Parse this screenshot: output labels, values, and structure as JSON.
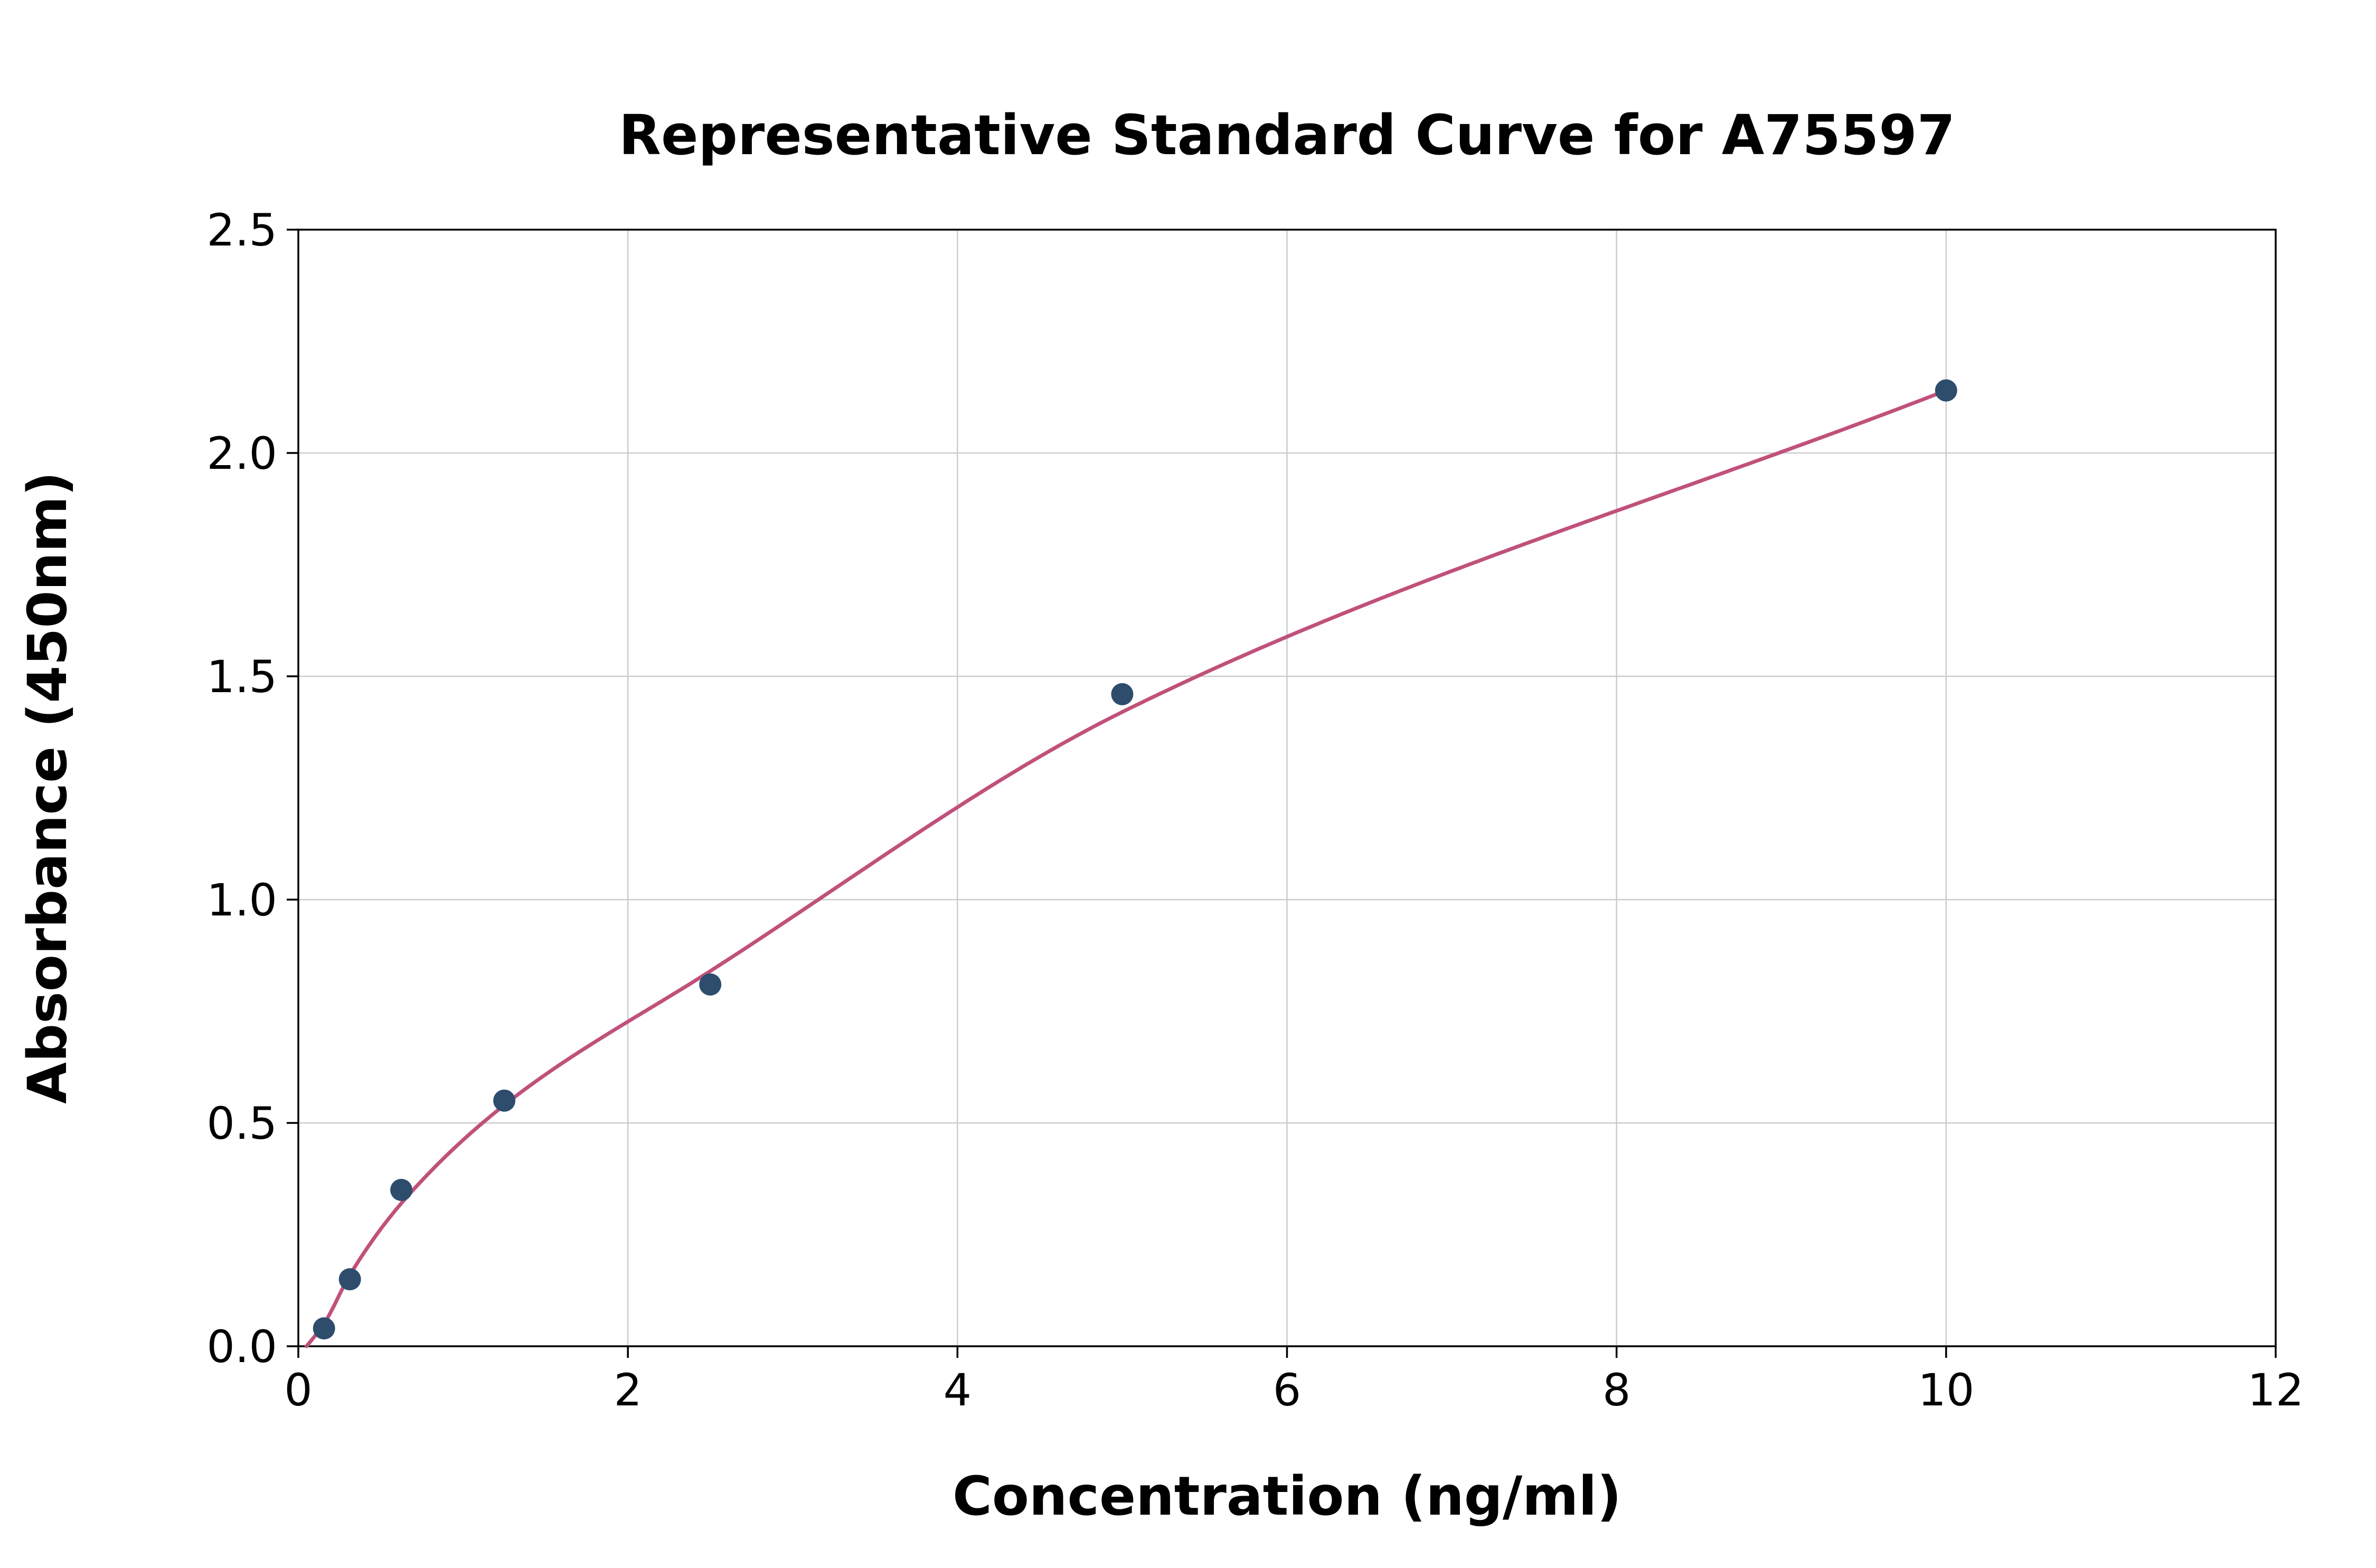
{
  "chart_data": {
    "type": "scatter",
    "title": "Representative Standard Curve for A75597",
    "xlabel": "Concentration (ng/ml)",
    "ylabel": "Absorbance (450nm)",
    "xlim": [
      0,
      12
    ],
    "ylim": [
      0,
      2.5
    ],
    "xticks": [
      0,
      2,
      4,
      6,
      8,
      10,
      12
    ],
    "xtick_labels": [
      "0",
      "2",
      "4",
      "6",
      "8",
      "10",
      "12"
    ],
    "yticks": [
      0,
      0.5,
      1.0,
      1.5,
      2.0,
      2.5
    ],
    "ytick_labels": [
      "0.0",
      "0.5",
      "1.0",
      "1.5",
      "2.0",
      "2.5"
    ],
    "grid": true,
    "legend": "none",
    "colors": {
      "point": "#2e4d6d",
      "curve": "#c0517a",
      "grid": "#cccccc",
      "axis": "#000000",
      "background": "#ffffff"
    },
    "series": [
      {
        "name": "standard-points",
        "type": "scatter",
        "color": "#2e4d6d",
        "x": [
          0.156,
          0.313,
          0.625,
          1.25,
          2.5,
          5,
          10
        ],
        "y": [
          0.04,
          0.15,
          0.35,
          0.55,
          0.81,
          1.46,
          2.14
        ]
      },
      {
        "name": "fitted-curve",
        "type": "line",
        "color": "#c0517a",
        "x": [
          0.05,
          0.156,
          0.313,
          0.625,
          1.25,
          2.5,
          5,
          10
        ],
        "y": [
          0.0,
          0.05,
          0.16,
          0.32,
          0.54,
          0.84,
          1.42,
          2.14
        ]
      }
    ]
  }
}
